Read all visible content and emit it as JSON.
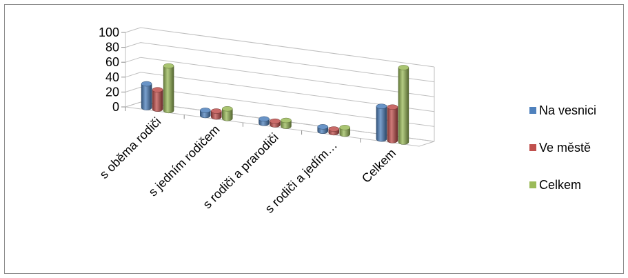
{
  "chart_data": {
    "type": "bar",
    "style": "3d-cylinder-clustered",
    "categories": [
      "s oběma rodiči",
      "s jedním rodičem",
      "s rodiči a prarodiči",
      "s rodiči a jedím…",
      "Celkem"
    ],
    "series": [
      {
        "name": "Na vesnici",
        "values": [
          32,
          7,
          6,
          6,
          44
        ]
      },
      {
        "name": "Ve městě",
        "values": [
          26,
          8,
          5,
          5,
          45
        ]
      },
      {
        "name": "Celkem",
        "values": [
          60,
          13,
          8,
          9,
          100
        ]
      }
    ],
    "ylim": [
      0,
      100
    ],
    "yticks": [
      0,
      20,
      40,
      60,
      80,
      100
    ],
    "grid": true,
    "legend_position": "right",
    "colors": {
      "Na vesnici": "#4f81bd",
      "Ve městě": "#c0504d",
      "Celkem": "#9bbb59"
    }
  }
}
